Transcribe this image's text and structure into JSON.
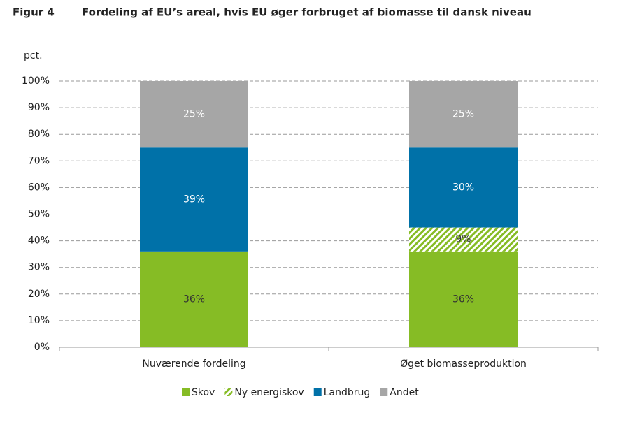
{
  "chart_data": {
    "type": "stacked_bar",
    "figure_label": "Figur 4",
    "title": "Fordeling af EU’s areal, hvis EU øger forbruget af biomasse til dansk niveau",
    "y_axis_label": "pct.",
    "categories": [
      "Nuværende fordeling",
      "Øget biomasseproduktion"
    ],
    "series": [
      {
        "name": "Skov",
        "color": "#86bc25",
        "label_color": "#333333",
        "values": [
          36,
          36
        ],
        "value_labels": [
          "36%",
          "36%"
        ]
      },
      {
        "name": "Ny energiskov",
        "color": "#86bc25",
        "pattern": "hatch",
        "label_color": "#333333",
        "values": [
          null,
          9
        ],
        "value_labels": [
          null,
          "9%"
        ]
      },
      {
        "name": "Landbrug",
        "color": "#0071a8",
        "label_color": "#ffffff",
        "values": [
          39,
          30
        ],
        "value_labels": [
          "39%",
          "30%"
        ]
      },
      {
        "name": "Andet",
        "color": "#a6a6a6",
        "label_color": "#ffffff",
        "values": [
          25,
          25
        ],
        "value_labels": [
          "25%",
          "25%"
        ]
      }
    ],
    "ylim": [
      0,
      100
    ],
    "yticks": [
      {
        "value": 0,
        "label": "0%"
      },
      {
        "value": 10,
        "label": "10%"
      },
      {
        "value": 20,
        "label": "20%"
      },
      {
        "value": 30,
        "label": "30%"
      },
      {
        "value": 40,
        "label": "40%"
      },
      {
        "value": 50,
        "label": "50%"
      },
      {
        "value": 60,
        "label": "60%"
      },
      {
        "value": 70,
        "label": "70%"
      },
      {
        "value": 80,
        "label": "80%"
      },
      {
        "value": 90,
        "label": "90%"
      },
      {
        "value": 100,
        "label": "100%"
      }
    ],
    "grid": true,
    "legend": "bottom"
  }
}
